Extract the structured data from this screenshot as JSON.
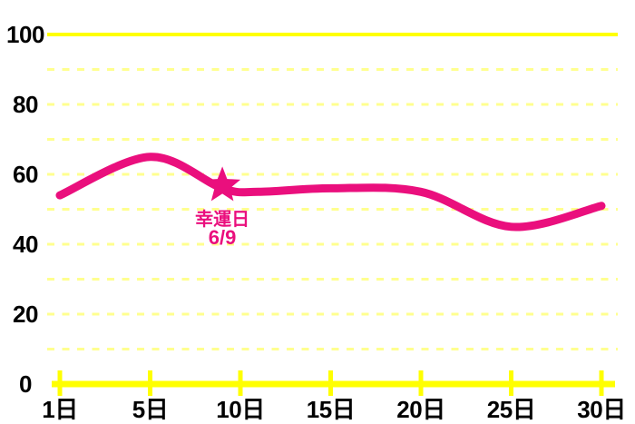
{
  "page": {
    "background": "#ffffff",
    "description_visible_elements": "monthly fortune biorhythm line chart with lucky-day star marker"
  },
  "chart_data": {
    "type": "line",
    "title": "",
    "xlabel": "",
    "ylabel": "",
    "ylim": [
      0,
      100
    ],
    "x": [
      1,
      5,
      9,
      11,
      15,
      20,
      25,
      30
    ],
    "series": [
      {
        "name": "",
        "values": [
          54,
          65,
          56,
          55,
          56,
          55,
          45,
          51
        ]
      }
    ],
    "x_ticks": {
      "days": [
        1,
        5,
        10,
        15,
        20,
        25,
        30
      ],
      "labels": [
        "1日",
        "5日",
        "10日",
        "15日",
        "20日",
        "25日",
        "30日"
      ]
    },
    "y_ticks": {
      "values": [
        0,
        20,
        40,
        60,
        80,
        100
      ],
      "labels": [
        "0",
        "20",
        "40",
        "60",
        "80",
        "100"
      ]
    },
    "gridlines": {
      "dashed_values": [
        10,
        20,
        30,
        40,
        50,
        60,
        70,
        80,
        90
      ],
      "solid_top_value": 100,
      "axis_value": 0,
      "orientation": "horizontal",
      "grid_on": true
    },
    "legend": "none",
    "annotation": {
      "marker": "star",
      "day": 9,
      "value": 56,
      "label": "幸運日",
      "date": "6/9"
    },
    "colors": {
      "line": "#ea0f7d",
      "star": "#ea0f7d",
      "annotation_text": "#ea0f7d",
      "grid_solid_yellow": "#ffff00",
      "grid_dashed_yellow": "#ffff8f",
      "axis_yellow": "#ffff00",
      "tick_text": "#000000",
      "background": "#ffffff"
    }
  }
}
